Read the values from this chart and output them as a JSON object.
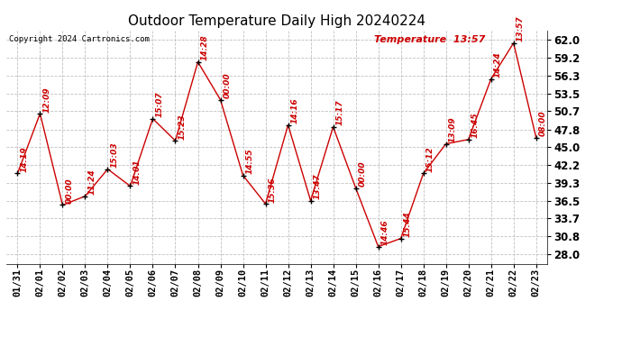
{
  "title": "Outdoor Temperature Daily High 20240224",
  "copyright": "Copyright 2024 Cartronics.com",
  "legend_label": "Temperature",
  "legend_time": "13:57",
  "dates": [
    "01/31",
    "02/01",
    "02/02",
    "02/03",
    "02/04",
    "02/05",
    "02/06",
    "02/07",
    "02/08",
    "02/09",
    "02/10",
    "02/11",
    "02/12",
    "02/13",
    "02/14",
    "02/15",
    "02/16",
    "02/17",
    "02/18",
    "02/19",
    "02/20",
    "02/21",
    "02/22",
    "02/23"
  ],
  "values": [
    40.8,
    50.3,
    35.8,
    37.2,
    41.5,
    38.8,
    49.5,
    46.0,
    58.5,
    52.5,
    40.5,
    36.0,
    48.5,
    36.5,
    48.2,
    38.5,
    29.2,
    30.5,
    40.8,
    45.5,
    46.2,
    55.8,
    61.5,
    46.5
  ],
  "time_labels": [
    "14:19",
    "12:09",
    "00:00",
    "11:24",
    "15:03",
    "14:01",
    "15:07",
    "15:23",
    "14:28",
    "00:00",
    "14:55",
    "15:36",
    "14:16",
    "13:47",
    "15:17",
    "00:00",
    "14:46",
    "15:44",
    "15:12",
    "13:09",
    "16:45",
    "14:24",
    "13:57",
    "08:00"
  ],
  "line_color": "#cc0000",
  "bg_color": "#ffffff",
  "grid_color": "#c0c0c0",
  "title_fontsize": 11,
  "label_fontsize": 6.5,
  "tick_fontsize": 7.5,
  "ytick_fontsize": 8.5,
  "ylim_min": 26.5,
  "ylim_max": 63.5,
  "yticks": [
    28.0,
    30.8,
    33.7,
    36.5,
    39.3,
    42.2,
    45.0,
    47.8,
    50.7,
    53.5,
    56.3,
    59.2,
    62.0
  ]
}
